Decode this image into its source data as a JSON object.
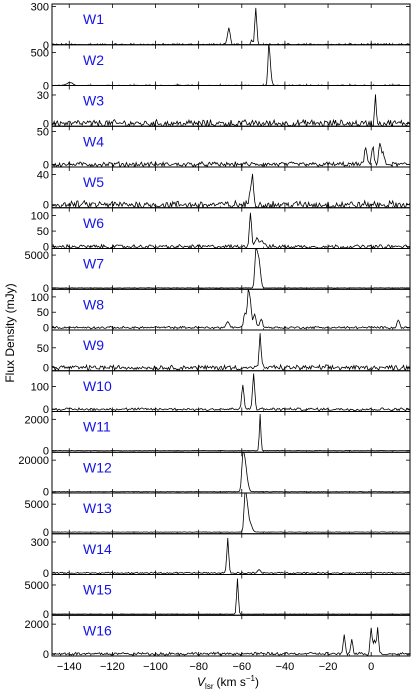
{
  "chart_data": {
    "type": "line",
    "xlabel": "V",
    "xlabel_sub": "lsr",
    "xlabel_unit": "(km s",
    "xlabel_unit_sup": "−1",
    "xlabel_unit_close": ")",
    "ylabel": "Flux Density (mJy)",
    "xlim": [
      -148,
      18
    ],
    "xticks": [
      -140,
      -120,
      -100,
      -80,
      -60,
      -40,
      -20,
      0
    ],
    "xtick_labels": [
      "−140",
      "−120",
      "−100",
      "−80",
      "−60",
      "−40",
      "−20",
      "0"
    ],
    "label_color": "#1515e6",
    "panels": [
      {
        "name": "W1",
        "ylim": [
          0,
          320
        ],
        "yticks": [
          0,
          300
        ],
        "ytick_labels": [
          "0",
          "300"
        ],
        "noise": 8,
        "peaks": [
          {
            "v": -53.5,
            "a": 300,
            "w": 0.45
          },
          {
            "v": -66,
            "a": 130,
            "w": 0.6
          },
          {
            "v": -55.5,
            "a": 35,
            "w": 0.5
          }
        ]
      },
      {
        "name": "W2",
        "ylim": [
          0,
          620
        ],
        "yticks": [
          0,
          500
        ],
        "ytick_labels": [
          "0",
          "500"
        ],
        "noise": 8,
        "peaks": [
          {
            "v": -47.5,
            "a": 560,
            "w": 0.4
          },
          {
            "v": -46.8,
            "a": 260,
            "w": 0.5
          },
          {
            "v": -139.5,
            "a": 50,
            "w": 1.2
          }
        ]
      },
      {
        "name": "W3",
        "ylim": [
          -3,
          40
        ],
        "yticks": [
          0,
          30
        ],
        "ytick_labels": [
          "0",
          "30"
        ],
        "noise": 3,
        "peaks": [
          {
            "v": 2,
            "a": 32,
            "w": 0.35
          }
        ]
      },
      {
        "name": "W4",
        "ylim": [
          -4,
          58
        ],
        "yticks": [
          0,
          50
        ],
        "ytick_labels": [
          "0",
          "50"
        ],
        "noise": 3,
        "peaks": [
          {
            "v": -2.5,
            "a": 24,
            "w": 0.6
          },
          {
            "v": 0.8,
            "a": 30,
            "w": 0.5
          },
          {
            "v": 4,
            "a": 34,
            "w": 0.5
          },
          {
            "v": 5.5,
            "a": 20,
            "w": 0.5
          }
        ]
      },
      {
        "name": "W5",
        "ylim": [
          -4,
          50
        ],
        "yticks": [
          0,
          40
        ],
        "ytick_labels": [
          "0",
          "40"
        ],
        "noise": 4,
        "peaks": [
          {
            "v": -55,
            "a": 40,
            "w": 0.45
          },
          {
            "v": -56,
            "a": 18,
            "w": 0.5
          }
        ]
      },
      {
        "name": "W6",
        "ylim": [
          -6,
          125
        ],
        "yticks": [
          0,
          50,
          100
        ],
        "ytick_labels": [
          "0",
          "50",
          "100"
        ],
        "noise": 5,
        "peaks": [
          {
            "v": -56,
            "a": 110,
            "w": 0.5
          },
          {
            "v": -53,
            "a": 30,
            "w": 0.8
          },
          {
            "v": -50.5,
            "a": 20,
            "w": 0.8
          }
        ]
      },
      {
        "name": "W7",
        "ylim": [
          -200,
          6000
        ],
        "yticks": [
          0,
          5000
        ],
        "ytick_labels": [
          "0",
          "5000"
        ],
        "noise": 25,
        "peaks": [
          {
            "v": -53.5,
            "a": 5000,
            "w": 0.5
          },
          {
            "v": -52.5,
            "a": 3800,
            "w": 0.6
          },
          {
            "v": -51.6,
            "a": 2200,
            "w": 0.6
          }
        ]
      },
      {
        "name": "W8",
        "ylim": [
          -8,
          125
        ],
        "yticks": [
          0,
          50,
          100
        ],
        "ytick_labels": [
          "0",
          "50",
          "100"
        ],
        "noise": 3,
        "peaks": [
          {
            "v": -57,
            "a": 110,
            "w": 0.45
          },
          {
            "v": -56,
            "a": 85,
            "w": 0.5
          },
          {
            "v": -58.5,
            "a": 50,
            "w": 0.6
          },
          {
            "v": -54,
            "a": 45,
            "w": 0.6
          },
          {
            "v": -51,
            "a": 30,
            "w": 0.6
          },
          {
            "v": -66.5,
            "a": 20,
            "w": 0.7
          },
          {
            "v": 12.5,
            "a": 25,
            "w": 0.6
          }
        ]
      },
      {
        "name": "W9",
        "ylim": [
          -8,
          95
        ],
        "yticks": [
          0,
          50
        ],
        "ytick_labels": [
          "0",
          "50"
        ],
        "noise": 5,
        "peaks": [
          {
            "v": -51.5,
            "a": 85,
            "w": 0.45
          }
        ]
      },
      {
        "name": "W10",
        "ylim": [
          -10,
          170
        ],
        "yticks": [
          0,
          100
        ],
        "ytick_labels": [
          "0",
          "100"
        ],
        "noise": 5,
        "peaks": [
          {
            "v": -54.5,
            "a": 155,
            "w": 0.5
          },
          {
            "v": -59.5,
            "a": 110,
            "w": 0.5
          }
        ]
      },
      {
        "name": "W11",
        "ylim": [
          -100,
          2500
        ],
        "yticks": [
          0,
          2000
        ],
        "ytick_labels": [
          "0",
          "2000"
        ],
        "noise": 10,
        "peaks": [
          {
            "v": -51.5,
            "a": 2350,
            "w": 0.35
          }
        ]
      },
      {
        "name": "W12",
        "ylim": [
          -800,
          25000
        ],
        "yticks": [
          0,
          20000
        ],
        "ytick_labels": [
          "0",
          "20000"
        ],
        "noise": 100,
        "peaks": [
          {
            "v": -59.5,
            "a": 21000,
            "w": 0.55
          },
          {
            "v": -58.5,
            "a": 15000,
            "w": 0.6
          },
          {
            "v": -57.5,
            "a": 6000,
            "w": 0.7
          }
        ]
      },
      {
        "name": "W13",
        "ylim": [
          -300,
          7000
        ],
        "yticks": [
          0,
          5000
        ],
        "ytick_labels": [
          "0",
          "5000"
        ],
        "noise": 30,
        "peaks": [
          {
            "v": -58.5,
            "a": 6200,
            "w": 0.5
          },
          {
            "v": -57.5,
            "a": 4500,
            "w": 0.6
          },
          {
            "v": -56,
            "a": 1500,
            "w": 0.8
          }
        ]
      },
      {
        "name": "W14",
        "ylim": [
          -15,
          380
        ],
        "yticks": [
          0,
          300
        ],
        "ytick_labels": [
          "0",
          "300"
        ],
        "noise": 6,
        "peaks": [
          {
            "v": -66.5,
            "a": 330,
            "w": 0.45
          },
          {
            "v": -52,
            "a": 30,
            "w": 0.6
          }
        ]
      },
      {
        "name": "W15",
        "ylim": [
          -200,
          6800
        ],
        "yticks": [
          0,
          5000
        ],
        "ytick_labels": [
          "0",
          "5000"
        ],
        "noise": 20,
        "peaks": [
          {
            "v": -62,
            "a": 6100,
            "w": 0.4
          }
        ]
      },
      {
        "name": "W16",
        "ylim": [
          -150,
          2600
        ],
        "yticks": [
          0,
          2000
        ],
        "ytick_labels": [
          "0",
          "2000"
        ],
        "noise": 80,
        "peaks": [
          {
            "v": 0,
            "a": 1800,
            "w": 0.45
          },
          {
            "v": 3,
            "a": 1700,
            "w": 0.45
          },
          {
            "v": -12.5,
            "a": 1200,
            "w": 0.45
          },
          {
            "v": -9,
            "a": 1000,
            "w": 0.45
          },
          {
            "v": 1.5,
            "a": 900,
            "w": 0.5
          }
        ]
      }
    ]
  }
}
